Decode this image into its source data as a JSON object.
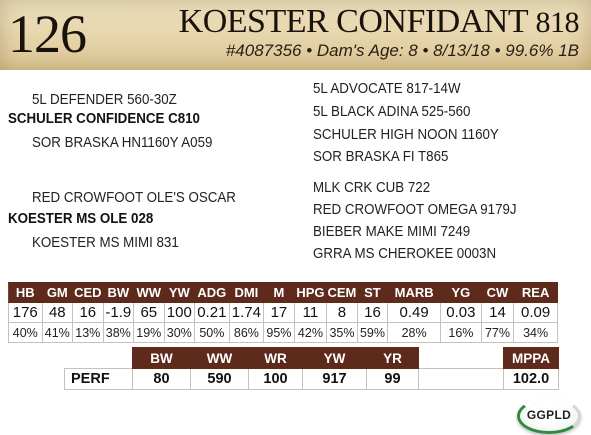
{
  "lot_number": "126",
  "animal": {
    "name": "KOESTER CONFIDANT",
    "tag": "818",
    "info": "#4087356 • Dam's Age: 8 • 8/13/18 • 99.6% 1B"
  },
  "pedigree": {
    "sire_sire": "5L DEFENDER 560-30Z",
    "sire": "SCHULER CONFIDENCE C810",
    "sire_dam": "SOR BRASKA HN1160Y A059",
    "sire_ss_sire": "5L ADVOCATE 817-14W",
    "sire_ss_dam": "5L BLACK ADINA 525-560",
    "sire_sd_sire": "SCHULER HIGH NOON 1160Y",
    "sire_sd_dam": "SOR BRASKA FI T865",
    "dam_sire": "RED CROWFOOT OLE'S OSCAR",
    "dam": "KOESTER MS OLE 028",
    "dam_dam": "KOESTER MS MIMI 831",
    "dam_ds_sire": "MLK CRK CUB 722",
    "dam_ds_dam": "RED CROWFOOT OMEGA 9179J",
    "dam_dd_sire": "BIEBER MAKE MIMI 7249",
    "dam_dd_dam": "GRRA MS CHEROKEE 0003N"
  },
  "epd_table": {
    "headers": [
      "HB",
      "GM",
      "CED",
      "BW",
      "WW",
      "YW",
      "ADG",
      "DMI",
      "M",
      "HPG",
      "CEM",
      "ST",
      "MARB",
      "YG",
      "CW",
      "REA"
    ],
    "values": [
      "176",
      "48",
      "16",
      "-1.9",
      "65",
      "100",
      "0.21",
      "1.74",
      "17",
      "11",
      "8",
      "16",
      "0.49",
      "0.03",
      "14",
      "0.09"
    ],
    "percentiles": [
      "40%",
      "41%",
      "13%",
      "38%",
      "19%",
      "30%",
      "50%",
      "86%",
      "95%",
      "42%",
      "35%",
      "59%",
      "28%",
      "16%",
      "77%",
      "34%"
    ]
  },
  "perf_table": {
    "headers": [
      "BW",
      "WW",
      "WR",
      "YW",
      "YR",
      "MPPA"
    ],
    "row_label": "PERF",
    "values": [
      "80",
      "590",
      "100",
      "917",
      "99",
      "102.0"
    ]
  },
  "logo_text": "GGPLD",
  "colors": {
    "header_fill": "#5e2a1c",
    "banner": "#e6d4aa",
    "logo_green": "#2f8a3e"
  }
}
